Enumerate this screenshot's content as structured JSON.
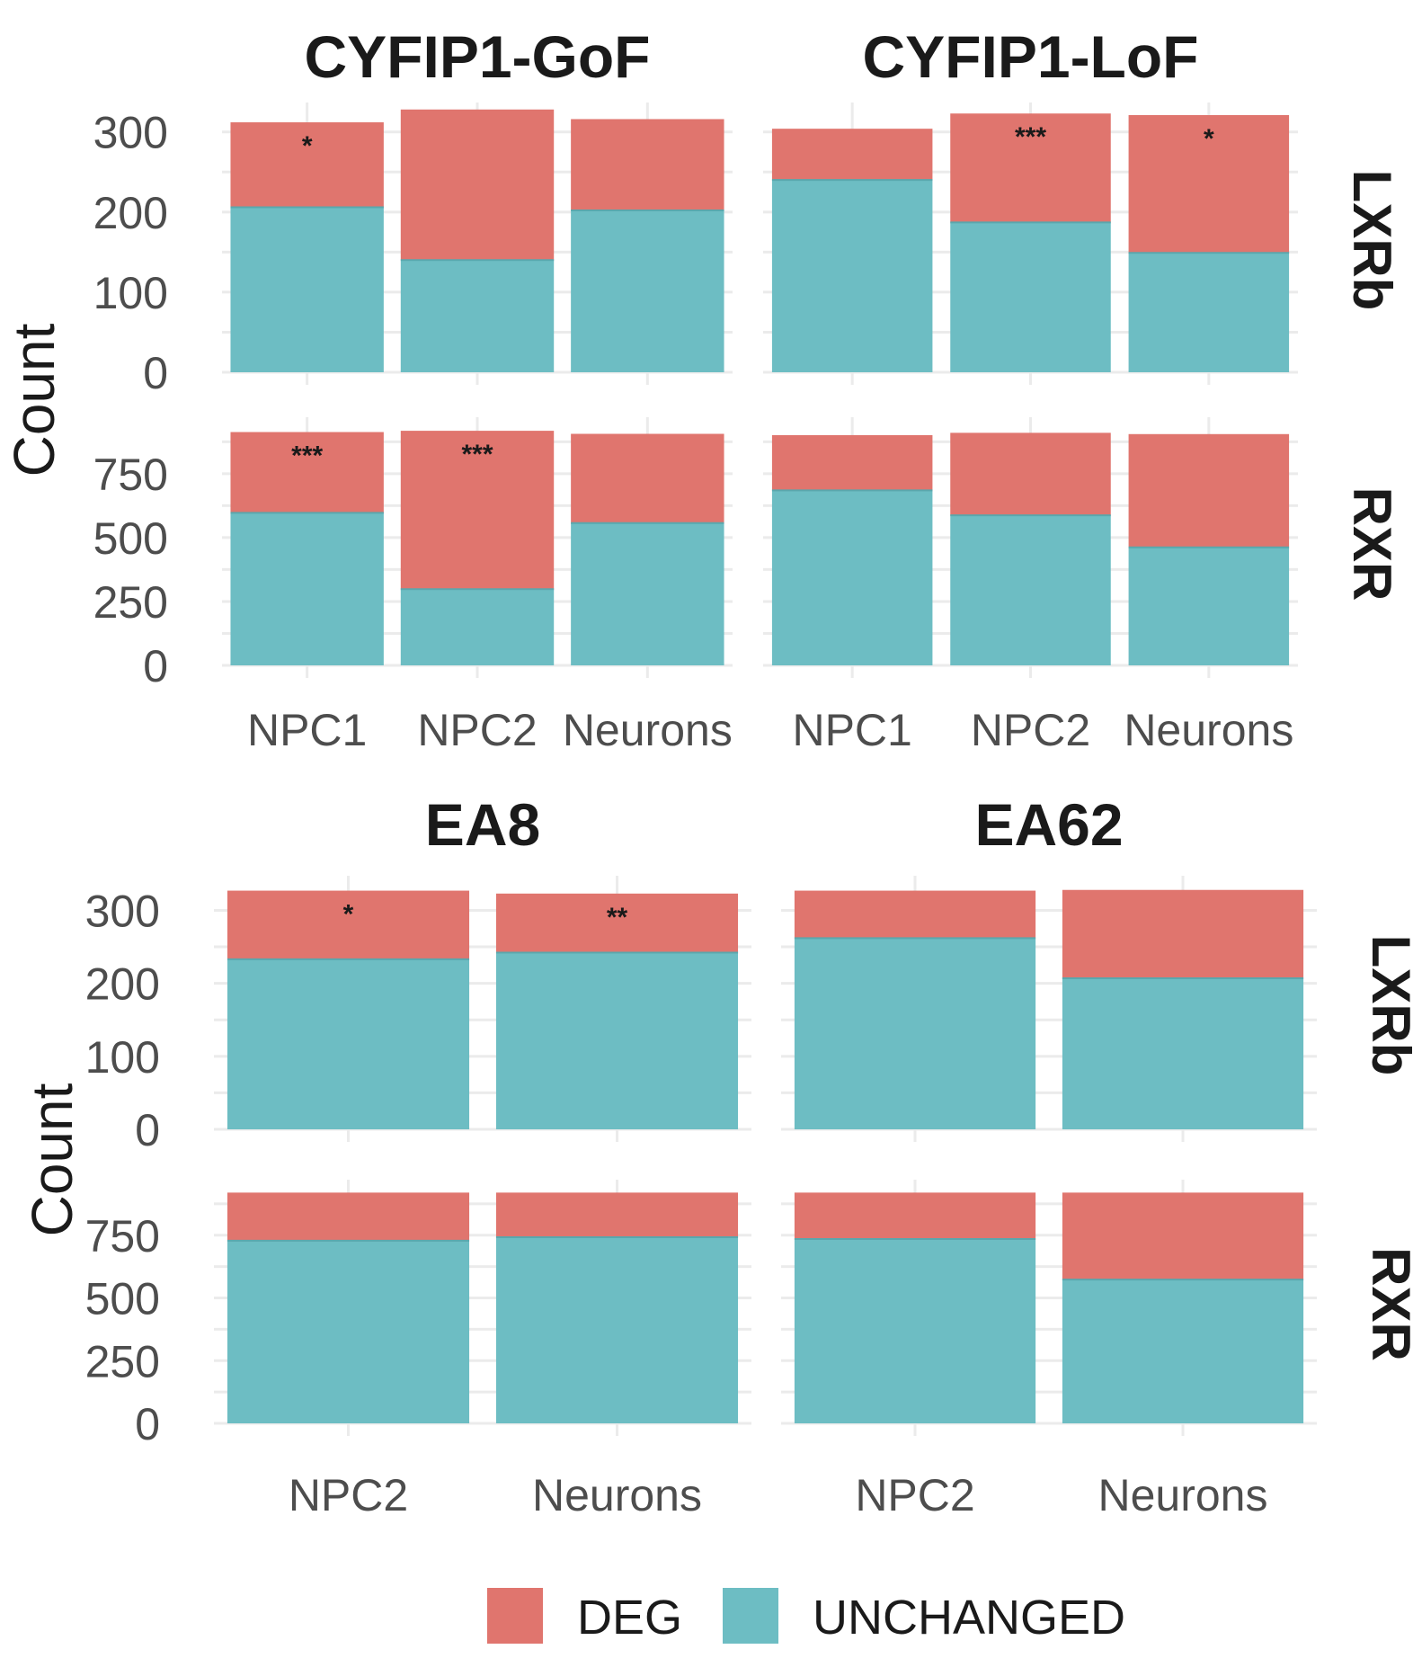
{
  "chart_data": [
    {
      "type": "bar",
      "stacked": true,
      "title": "CYFIP1-GoF",
      "row": "LXRb",
      "categories": [
        "NPC1",
        "NPC2",
        "Neurons"
      ],
      "series": [
        {
          "name": "UNCHANGED",
          "values": [
            206,
            140,
            202
          ]
        },
        {
          "name": "DEG",
          "values": [
            106,
            188,
            114
          ]
        }
      ],
      "significance": [
        "*",
        "",
        ""
      ],
      "yticks": [
        "0",
        "100",
        "200",
        "300"
      ],
      "ylim": [
        0,
        330
      ]
    },
    {
      "type": "bar",
      "stacked": true,
      "title": "CYFIP1-LoF",
      "row": "LXRb",
      "categories": [
        "NPC1",
        "NPC2",
        "Neurons"
      ],
      "series": [
        {
          "name": "UNCHANGED",
          "values": [
            240,
            187,
            149
          ]
        },
        {
          "name": "DEG",
          "values": [
            64,
            136,
            172
          ]
        }
      ],
      "significance": [
        "",
        "***",
        "*"
      ],
      "yticks": [
        "0",
        "100",
        "200",
        "300"
      ],
      "ylim": [
        0,
        330
      ]
    },
    {
      "type": "bar",
      "stacked": true,
      "title": "CYFIP1-GoF",
      "row": "RXR",
      "categories": [
        "NPC1",
        "NPC2",
        "Neurons"
      ],
      "series": [
        {
          "name": "UNCHANGED",
          "values": [
            597,
            298,
            557
          ]
        },
        {
          "name": "DEG",
          "values": [
            316,
            620,
            349
          ]
        }
      ],
      "significance": [
        "***",
        "***",
        ""
      ],
      "yticks": [
        "0",
        "250",
        "500",
        "750"
      ],
      "ylim": [
        0,
        950
      ]
    },
    {
      "type": "bar",
      "stacked": true,
      "title": "CYFIP1-LoF",
      "row": "RXR",
      "categories": [
        "NPC1",
        "NPC2",
        "Neurons"
      ],
      "series": [
        {
          "name": "UNCHANGED",
          "values": [
            685,
            587,
            462
          ]
        },
        {
          "name": "DEG",
          "values": [
            216,
            323,
            443
          ]
        }
      ],
      "significance": [
        "",
        "",
        ""
      ],
      "yticks": [
        "0",
        "250",
        "500",
        "750"
      ],
      "ylim": [
        0,
        950
      ]
    },
    {
      "type": "bar",
      "stacked": true,
      "title": "EA8",
      "row": "LXRb",
      "categories": [
        "NPC2",
        "Neurons"
      ],
      "series": [
        {
          "name": "UNCHANGED",
          "values": [
            233,
            242
          ]
        },
        {
          "name": "DEG",
          "values": [
            94,
            81
          ]
        }
      ],
      "significance": [
        "*",
        "**"
      ],
      "yticks": [
        "0",
        "100",
        "200",
        "300"
      ],
      "ylim": [
        0,
        340
      ]
    },
    {
      "type": "bar",
      "stacked": true,
      "title": "EA62",
      "row": "LXRb",
      "categories": [
        "NPC2",
        "Neurons"
      ],
      "series": [
        {
          "name": "UNCHANGED",
          "values": [
            262,
            207
          ]
        },
        {
          "name": "DEG",
          "values": [
            65,
            121
          ]
        }
      ],
      "significance": [
        "",
        ""
      ],
      "yticks": [
        "0",
        "100",
        "200",
        "300"
      ],
      "ylim": [
        0,
        340
      ]
    },
    {
      "type": "bar",
      "stacked": true,
      "title": "EA8",
      "row": "RXR",
      "categories": [
        "NPC2",
        "Neurons"
      ],
      "series": [
        {
          "name": "UNCHANGED",
          "values": [
            728,
            742
          ]
        },
        {
          "name": "DEG",
          "values": [
            192,
            178
          ]
        }
      ],
      "significance": [
        "",
        ""
      ],
      "yticks": [
        "0",
        "250",
        "500",
        "750"
      ],
      "ylim": [
        0,
        950
      ]
    },
    {
      "type": "bar",
      "stacked": true,
      "title": "EA62",
      "row": "RXR",
      "categories": [
        "NPC2",
        "Neurons"
      ],
      "series": [
        {
          "name": "UNCHANGED",
          "values": [
            735,
            573
          ]
        },
        {
          "name": "DEG",
          "values": [
            185,
            347
          ]
        }
      ],
      "significance": [
        "",
        ""
      ],
      "yticks": [
        "0",
        "250",
        "500",
        "750"
      ],
      "ylim": [
        0,
        950
      ]
    }
  ],
  "ylabel": "Count",
  "row_labels": [
    "LXRb",
    "RXR"
  ],
  "legend": {
    "items": [
      {
        "label": "DEG",
        "color": "#E0756E"
      },
      {
        "label": "UNCHANGED",
        "color": "#6DBDC3"
      }
    ]
  },
  "colors": {
    "DEG": "#E0756E",
    "UNCHANGED": "#6DBDC3",
    "grid": "#ebebeb"
  }
}
